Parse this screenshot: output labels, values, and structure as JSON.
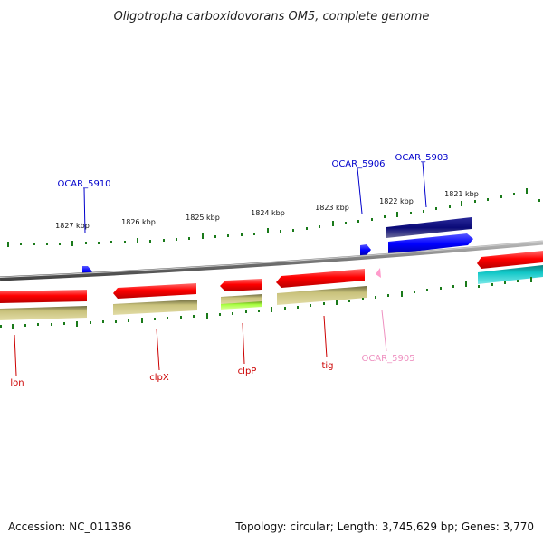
{
  "title": "Oligotropha carboxidovorans OM5, complete genome",
  "footer": {
    "accession": "Accession: NC_011386",
    "summary": "Topology: circular; Length: 3,745,629 bp; Genes: 3,770"
  },
  "ticks": [
    "1827 kbp",
    "1826 kbp",
    "1825 kbp",
    "1824 kbp",
    "1823 kbp",
    "1822 kbp",
    "1821 kbp"
  ],
  "gene_labels_top": [
    "OCAR_5910",
    "OCAR_5906",
    "OCAR_5903"
  ],
  "gene_labels_bottom": [
    "lon",
    "clpX",
    "clpP",
    "tig",
    "OCAR_5905"
  ],
  "colors": {
    "backbone": "#888888",
    "gene_red": "#ff0000",
    "cds_olive": "#c8c07a",
    "trna_blue": "#0000ff",
    "navy": "#0a0a78",
    "cyan": "#10c8c8",
    "green": "#a8ff40",
    "pink": "#ff9ccc",
    "tick_green": "#1a7a1a",
    "label_red": "#cc0000",
    "label_blue": "#0000cc",
    "label_pink": "#ee90c0"
  }
}
